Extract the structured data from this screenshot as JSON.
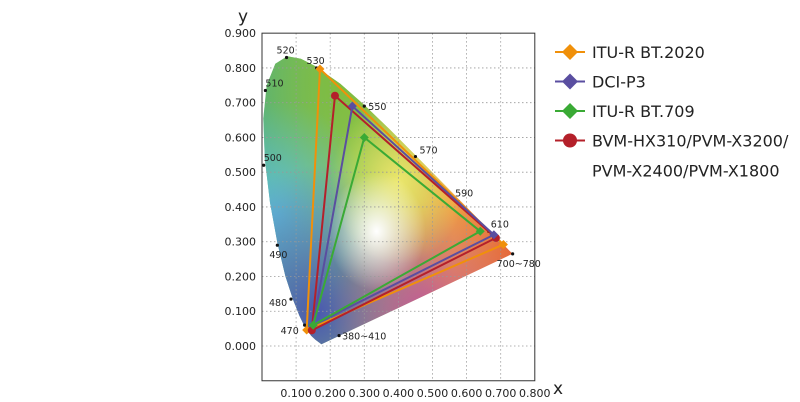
{
  "chart_data": {
    "type": "scatter",
    "title": "",
    "xlabel": "x",
    "ylabel": "y",
    "xlim": [
      0,
      0.8
    ],
    "ylim": [
      -0.1,
      0.9
    ],
    "grid": true,
    "legend_position": "right",
    "x_ticks": [
      "0.100",
      "0.200",
      "0.300",
      "0.400",
      "0.500",
      "0.600",
      "0.700",
      "0.800"
    ],
    "y_ticks": [
      "0.000",
      "0.100",
      "0.200",
      "0.300",
      "0.400",
      "0.500",
      "0.600",
      "0.700",
      "0.800",
      "0.900"
    ],
    "spectral_locus": [
      [
        0.1741,
        0.005
      ],
      [
        0.1566,
        0.0177
      ],
      [
        0.144,
        0.0297
      ],
      [
        0.1241,
        0.0578
      ],
      [
        0.1096,
        0.0868
      ],
      [
        0.0913,
        0.1327
      ],
      [
        0.0687,
        0.2007
      ],
      [
        0.0454,
        0.295
      ],
      [
        0.0235,
        0.4127
      ],
      [
        0.0082,
        0.5384
      ],
      [
        0.0039,
        0.6548
      ],
      [
        0.0139,
        0.7502
      ],
      [
        0.0389,
        0.812
      ],
      [
        0.0743,
        0.8338
      ],
      [
        0.1142,
        0.8262
      ],
      [
        0.1547,
        0.8059
      ],
      [
        0.2296,
        0.7543
      ],
      [
        0.3016,
        0.6923
      ],
      [
        0.3731,
        0.6245
      ],
      [
        0.4441,
        0.5547
      ],
      [
        0.5125,
        0.4866
      ],
      [
        0.5752,
        0.4242
      ],
      [
        0.627,
        0.3725
      ],
      [
        0.6658,
        0.334
      ],
      [
        0.6915,
        0.3083
      ],
      [
        0.719,
        0.2809
      ],
      [
        0.7347,
        0.2653
      ]
    ],
    "wavelength_labels": [
      {
        "label": "520",
        "x": 0.072,
        "y": 0.83
      },
      {
        "label": "530",
        "x": 0.16,
        "y": 0.8
      },
      {
        "label": "510",
        "x": 0.01,
        "y": 0.735
      },
      {
        "label": "550",
        "x": 0.3,
        "y": 0.69
      },
      {
        "label": "570",
        "x": 0.45,
        "y": 0.545
      },
      {
        "label": "500",
        "x": 0.005,
        "y": 0.52
      },
      {
        "label": "590",
        "x": 0.575,
        "y": 0.415
      },
      {
        "label": "610",
        "x": 0.665,
        "y": 0.33
      },
      {
        "label": "490",
        "x": 0.045,
        "y": 0.29
      },
      {
        "label": "700~780",
        "x": 0.735,
        "y": 0.265
      },
      {
        "label": "480",
        "x": 0.085,
        "y": 0.135
      },
      {
        "label": "470",
        "x": 0.125,
        "y": 0.06
      },
      {
        "label": "380~410",
        "x": 0.226,
        "y": 0.03
      }
    ],
    "series": [
      {
        "name": "ITU-R BT.2020",
        "color": "#f0900a",
        "marker": "diamond",
        "points": [
          [
            0.708,
            0.292
          ],
          [
            0.17,
            0.797
          ],
          [
            0.131,
            0.046
          ]
        ]
      },
      {
        "name": "DCI-P3",
        "color": "#5a4ea0",
        "marker": "diamond",
        "points": [
          [
            0.68,
            0.32
          ],
          [
            0.265,
            0.69
          ],
          [
            0.15,
            0.06
          ]
        ]
      },
      {
        "name": "ITU-R BT.709",
        "color": "#3aaa35",
        "marker": "diamond",
        "points": [
          [
            0.64,
            0.33
          ],
          [
            0.3,
            0.6
          ],
          [
            0.15,
            0.06
          ]
        ]
      },
      {
        "name": "BVM-HX310/PVM-X3200/",
        "name_line2": "PVM-X2400/PVM-X1800",
        "color": "#b4202a",
        "marker": "circle",
        "points": [
          [
            0.686,
            0.311
          ],
          [
            0.214,
            0.72
          ],
          [
            0.146,
            0.045
          ]
        ]
      }
    ]
  }
}
